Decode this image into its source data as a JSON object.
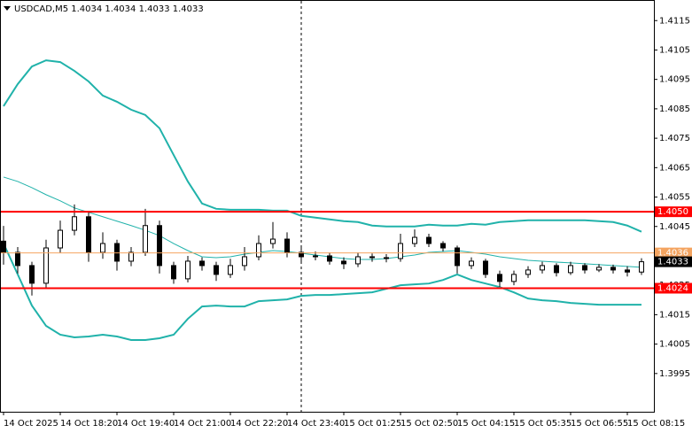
{
  "chart_data": {
    "type": "candlestick",
    "title": "USDCAD,M5  1.4034 1.4034 1.4033 1.4033",
    "categories": [
      "14 Oct 2025",
      null,
      null,
      null,
      "14 Oct 18:20",
      null,
      null,
      null,
      "14 Oct 19:40",
      null,
      null,
      null,
      "14 Oct 21:00",
      null,
      null,
      null,
      "14 Oct 22:20",
      null,
      null,
      null,
      "14 Oct 23:40",
      null,
      null,
      null,
      "15 Oct 01:25",
      null,
      null,
      null,
      "15 Oct 02:50",
      null,
      null,
      null,
      "15 Oct 04:15",
      null,
      null,
      null,
      "15 Oct 05:35",
      null,
      null,
      null,
      "15 Oct 06:55",
      null,
      null,
      null,
      "15 Oct 08:15",
      null
    ],
    "open": [
      1.404,
      1.40362,
      1.40317,
      1.40257,
      1.40377,
      1.40437,
      1.40483,
      1.40362,
      1.40392,
      1.40332,
      1.40362,
      1.40453,
      1.40317,
      1.40272,
      1.40332,
      1.40317,
      1.40287,
      1.40317,
      1.40347,
      1.40392,
      1.40407,
      1.40362,
      1.40347,
      1.4035,
      1.40332,
      1.40323,
      1.40347,
      1.40344,
      1.40341,
      1.40392,
      1.40413,
      1.40392,
      1.40377,
      1.40317,
      1.40332,
      1.40287,
      1.40263,
      1.40287,
      1.40302,
      1.40317,
      1.40293,
      1.40317,
      1.40302,
      1.40311,
      1.40302,
      1.40295
    ],
    "high": [
      1.40452,
      1.4038,
      1.4033,
      1.40405,
      1.4047,
      1.40525,
      1.405,
      1.4043,
      1.40405,
      1.4038,
      1.4051,
      1.4047,
      1.4033,
      1.4035,
      1.40345,
      1.4033,
      1.4034,
      1.4038,
      1.4042,
      1.40465,
      1.4043,
      1.4038,
      1.40365,
      1.40362,
      1.40345,
      1.40362,
      1.40358,
      1.40356,
      1.40425,
      1.4044,
      1.40425,
      1.404,
      1.40385,
      1.40345,
      1.4034,
      1.403,
      1.403,
      1.40315,
      1.4033,
      1.40325,
      1.4033,
      1.40325,
      1.40322,
      1.4032,
      1.40315,
      1.40342
    ],
    "low": [
      1.4032,
      1.4029,
      1.40215,
      1.4024,
      1.4036,
      1.4042,
      1.4033,
      1.4034,
      1.403,
      1.40315,
      1.4035,
      1.4029,
      1.40255,
      1.4026,
      1.403,
      1.40265,
      1.40275,
      1.403,
      1.40335,
      1.40375,
      1.40345,
      1.4033,
      1.40335,
      1.4032,
      1.40305,
      1.40312,
      1.4033,
      1.40328,
      1.4033,
      1.4038,
      1.4038,
      1.40365,
      1.4029,
      1.40305,
      1.40275,
      1.40245,
      1.4025,
      1.40275,
      1.4029,
      1.4028,
      1.40285,
      1.4029,
      1.40295,
      1.4029,
      1.4028,
      1.40285
    ],
    "close": [
      1.40362,
      1.40317,
      1.40257,
      1.40377,
      1.40437,
      1.40483,
      1.40362,
      1.40392,
      1.40332,
      1.40362,
      1.40453,
      1.40317,
      1.40272,
      1.40332,
      1.40317,
      1.40287,
      1.40317,
      1.40347,
      1.40392,
      1.40407,
      1.40362,
      1.40347,
      1.4035,
      1.40332,
      1.40323,
      1.40347,
      1.40344,
      1.40341,
      1.40392,
      1.40413,
      1.40392,
      1.40377,
      1.40317,
      1.40332,
      1.40287,
      1.40263,
      1.40287,
      1.40302,
      1.40317,
      1.40293,
      1.40317,
      1.40302,
      1.40311,
      1.40302,
      1.40295,
      1.4033
    ],
    "series": [
      {
        "color": "#20b2aa",
        "values": [
          1.40859,
          1.40934,
          1.40994,
          1.41015,
          1.41009,
          1.40979,
          1.40943,
          1.40895,
          1.40874,
          1.40847,
          1.40829,
          1.40784,
          1.40693,
          1.40603,
          1.40528,
          1.4051,
          1.40507,
          1.40507,
          1.40507,
          1.40504,
          1.40504,
          1.40486,
          1.4048,
          1.40474,
          1.40468,
          1.40465,
          1.40453,
          1.4045,
          1.4045,
          1.4045,
          1.40456,
          1.40453,
          1.40453,
          1.40459,
          1.40456,
          1.40465,
          1.40468,
          1.40471,
          1.40471,
          1.40471,
          1.40471,
          1.40471,
          1.40468,
          1.40465,
          1.40453,
          1.40432
        ]
      },
      {
        "color": "#20b2aa",
        "values": [
          1.40618,
          1.40603,
          1.40582,
          1.40558,
          1.40537,
          1.40513,
          1.40498,
          1.40483,
          1.40468,
          1.40453,
          1.40437,
          1.40419,
          1.40392,
          1.40368,
          1.40347,
          1.40344,
          1.40347,
          1.40356,
          1.40362,
          1.40368,
          1.40365,
          1.40359,
          1.40353,
          1.40347,
          1.40341,
          1.40338,
          1.40338,
          1.40341,
          1.40347,
          1.40353,
          1.40362,
          1.40365,
          1.40368,
          1.40362,
          1.40356,
          1.40347,
          1.40341,
          1.40335,
          1.40332,
          1.40329,
          1.40326,
          1.40323,
          1.4032,
          1.40317,
          1.40314,
          1.40311
        ]
      },
      {
        "color": "#20b2aa",
        "values": [
          1.40392,
          1.40287,
          1.40181,
          1.40112,
          1.40082,
          1.40073,
          1.40076,
          1.40082,
          1.40076,
          1.40064,
          1.40064,
          1.4007,
          1.40082,
          1.40136,
          1.40178,
          1.40181,
          1.40178,
          1.40178,
          1.40196,
          1.40199,
          1.40202,
          1.40214,
          1.40217,
          1.40217,
          1.4022,
          1.40223,
          1.40226,
          1.40238,
          1.4025,
          1.40253,
          1.40256,
          1.40268,
          1.40287,
          1.40268,
          1.40256,
          1.40244,
          1.40226,
          1.40205,
          1.40199,
          1.40196,
          1.4019,
          1.40187,
          1.40184,
          1.40184,
          1.40184,
          1.40184
        ]
      }
    ],
    "levels": [
      {
        "value": 1.405,
        "label": "1.4050",
        "color": "#ff0000"
      },
      {
        "value": 1.4036,
        "color": "#f4a460"
      },
      {
        "value": 1.4024,
        "color": "#ff0000"
      }
    ],
    "last_price": 1.4033,
    "ylim": [
      1.3982,
      1.4122
    ],
    "yticks": [
      1.3995,
      1.4005,
      1.4015,
      1.4025,
      1.4035,
      1.4045,
      1.4055,
      1.4065,
      1.4075,
      1.4085,
      1.4095,
      1.4105,
      1.4115
    ]
  }
}
